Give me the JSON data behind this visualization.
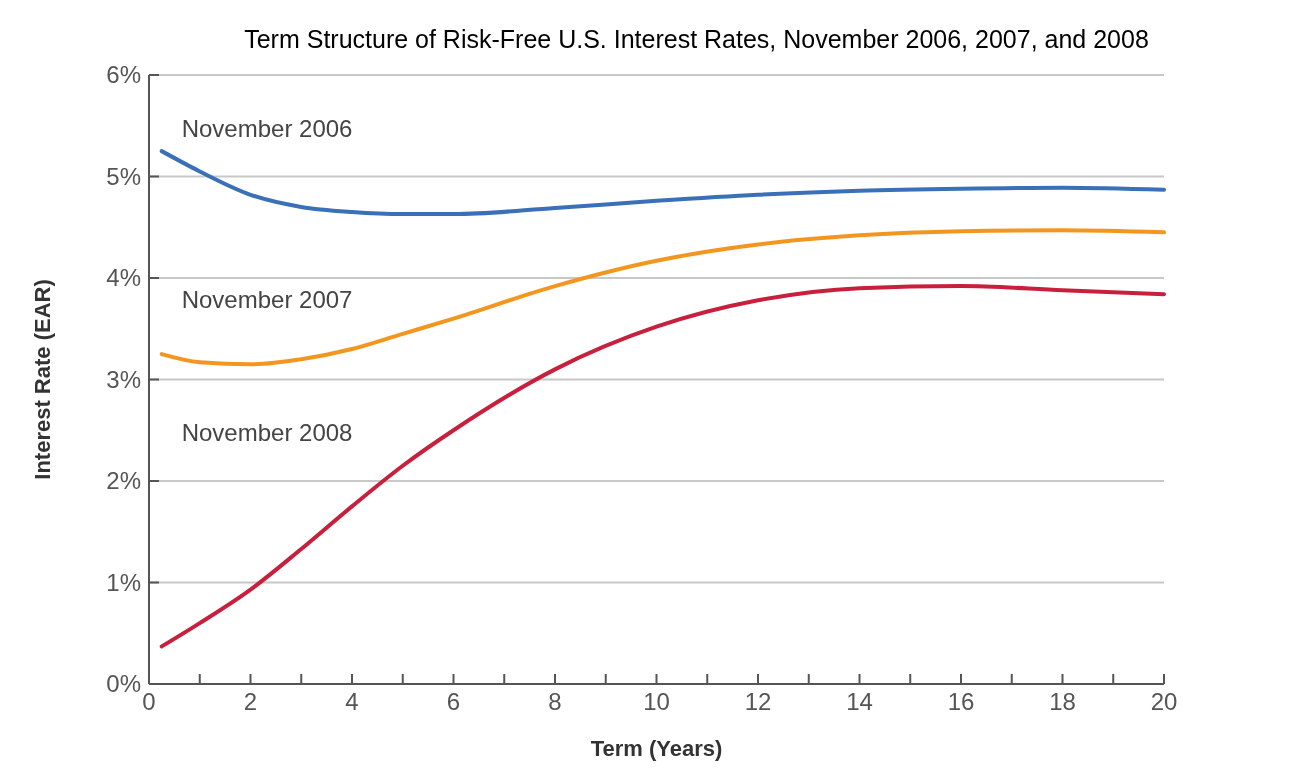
{
  "chart_data": {
    "type": "line",
    "title": "Term Structure of Risk-Free U.S. Interest Rates, November 2006, 2007, and 2008",
    "xlabel": "Term (Years)",
    "ylabel": "Interest Rate (EAR)",
    "xlim": [
      0,
      20
    ],
    "xticks": [
      0,
      {
        "value": 1,
        "label": null
      },
      2,
      {
        "value": 3,
        "label": null
      },
      4,
      {
        "value": 5,
        "label": null
      },
      6,
      {
        "value": 7,
        "label": null
      },
      8,
      {
        "value": 9,
        "label": null
      },
      10,
      {
        "value": 11,
        "label": null
      },
      12,
      {
        "value": 13,
        "label": null
      },
      14,
      {
        "value": 15,
        "label": null
      },
      16,
      {
        "value": 17,
        "label": null
      },
      18,
      {
        "value": 19,
        "label": null
      },
      20
    ],
    "ylim": [
      0,
      6
    ],
    "yticks": [
      {
        "value": 0,
        "label": "0%"
      },
      {
        "value": 1,
        "label": "1%"
      },
      {
        "value": 2,
        "label": "2%"
      },
      {
        "value": 3,
        "label": "3%"
      },
      {
        "value": 4,
        "label": "4%"
      },
      {
        "value": 5,
        "label": "5%"
      },
      {
        "value": 6,
        "label": "6%"
      }
    ],
    "grid": "y",
    "legend": false,
    "marker": "none",
    "line_style": "solid",
    "series": [
      {
        "name": "November 2006",
        "color": "#3a70b8",
        "x": [
          0.25,
          1,
          2,
          3,
          4,
          5,
          6,
          8,
          10,
          12,
          14,
          16,
          18,
          20
        ],
        "values": [
          5.25,
          5.05,
          4.82,
          4.7,
          4.65,
          4.63,
          4.63,
          4.69,
          4.76,
          4.82,
          4.86,
          4.88,
          4.89,
          4.87
        ]
      },
      {
        "name": "November 2007",
        "color": "#f3961f",
        "x": [
          0.25,
          1,
          2,
          3,
          4,
          5,
          6,
          8,
          10,
          12,
          14,
          16,
          18,
          20
        ],
        "values": [
          3.25,
          3.17,
          3.15,
          3.2,
          3.3,
          3.45,
          3.6,
          3.92,
          4.17,
          4.33,
          4.42,
          4.46,
          4.47,
          4.45
        ]
      },
      {
        "name": "November 2008",
        "color": "#c8203c",
        "x": [
          0.25,
          1,
          2,
          3,
          4,
          5,
          6,
          8,
          10,
          12,
          14,
          16,
          18,
          20
        ],
        "values": [
          0.37,
          0.6,
          0.93,
          1.33,
          1.75,
          2.15,
          2.5,
          3.1,
          3.52,
          3.78,
          3.9,
          3.92,
          3.88,
          3.84
        ]
      }
    ]
  }
}
